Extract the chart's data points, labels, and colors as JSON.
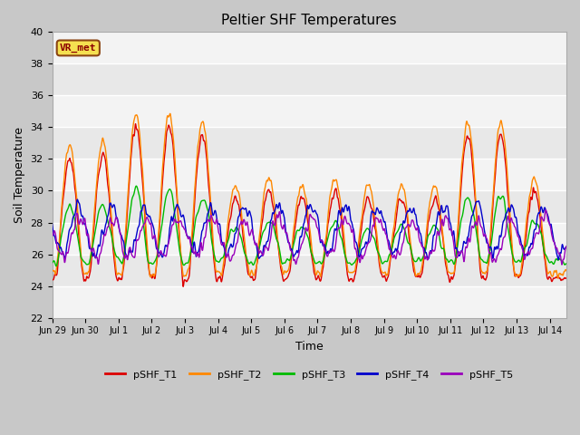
{
  "title": "Peltier SHF Temperatures",
  "xlabel": "Time",
  "ylabel": "Soil Temperature",
  "ylim": [
    22,
    40
  ],
  "xlim_start": 0,
  "xlim_end": 15.5,
  "annotation": "VR_met",
  "fig_bg": "#c8c8c8",
  "plot_bg": "#e8e8e8",
  "band_color": "#d8d8d8",
  "series": {
    "pSHF_T1": {
      "color": "#dd0000",
      "lw": 1.0
    },
    "pSHF_T2": {
      "color": "#ff8800",
      "lw": 1.0
    },
    "pSHF_T3": {
      "color": "#00bb00",
      "lw": 1.0
    },
    "pSHF_T4": {
      "color": "#0000cc",
      "lw": 1.0
    },
    "pSHF_T5": {
      "color": "#9900bb",
      "lw": 1.0
    }
  },
  "tick_labels": [
    "Jun 29",
    "Jun 30",
    "Jul 1",
    "Jul 2",
    "Jul 3",
    "Jul 4",
    "Jul 5",
    "Jul 6",
    "Jul 7",
    "Jul 8",
    "Jul 9",
    "Jul 10",
    "Jul 11",
    "Jul 12",
    "Jul 13",
    "Jul 14"
  ],
  "yticks": [
    22,
    24,
    26,
    28,
    30,
    32,
    34,
    36,
    38,
    40
  ],
  "figsize": [
    6.4,
    4.8
  ],
  "dpi": 100
}
